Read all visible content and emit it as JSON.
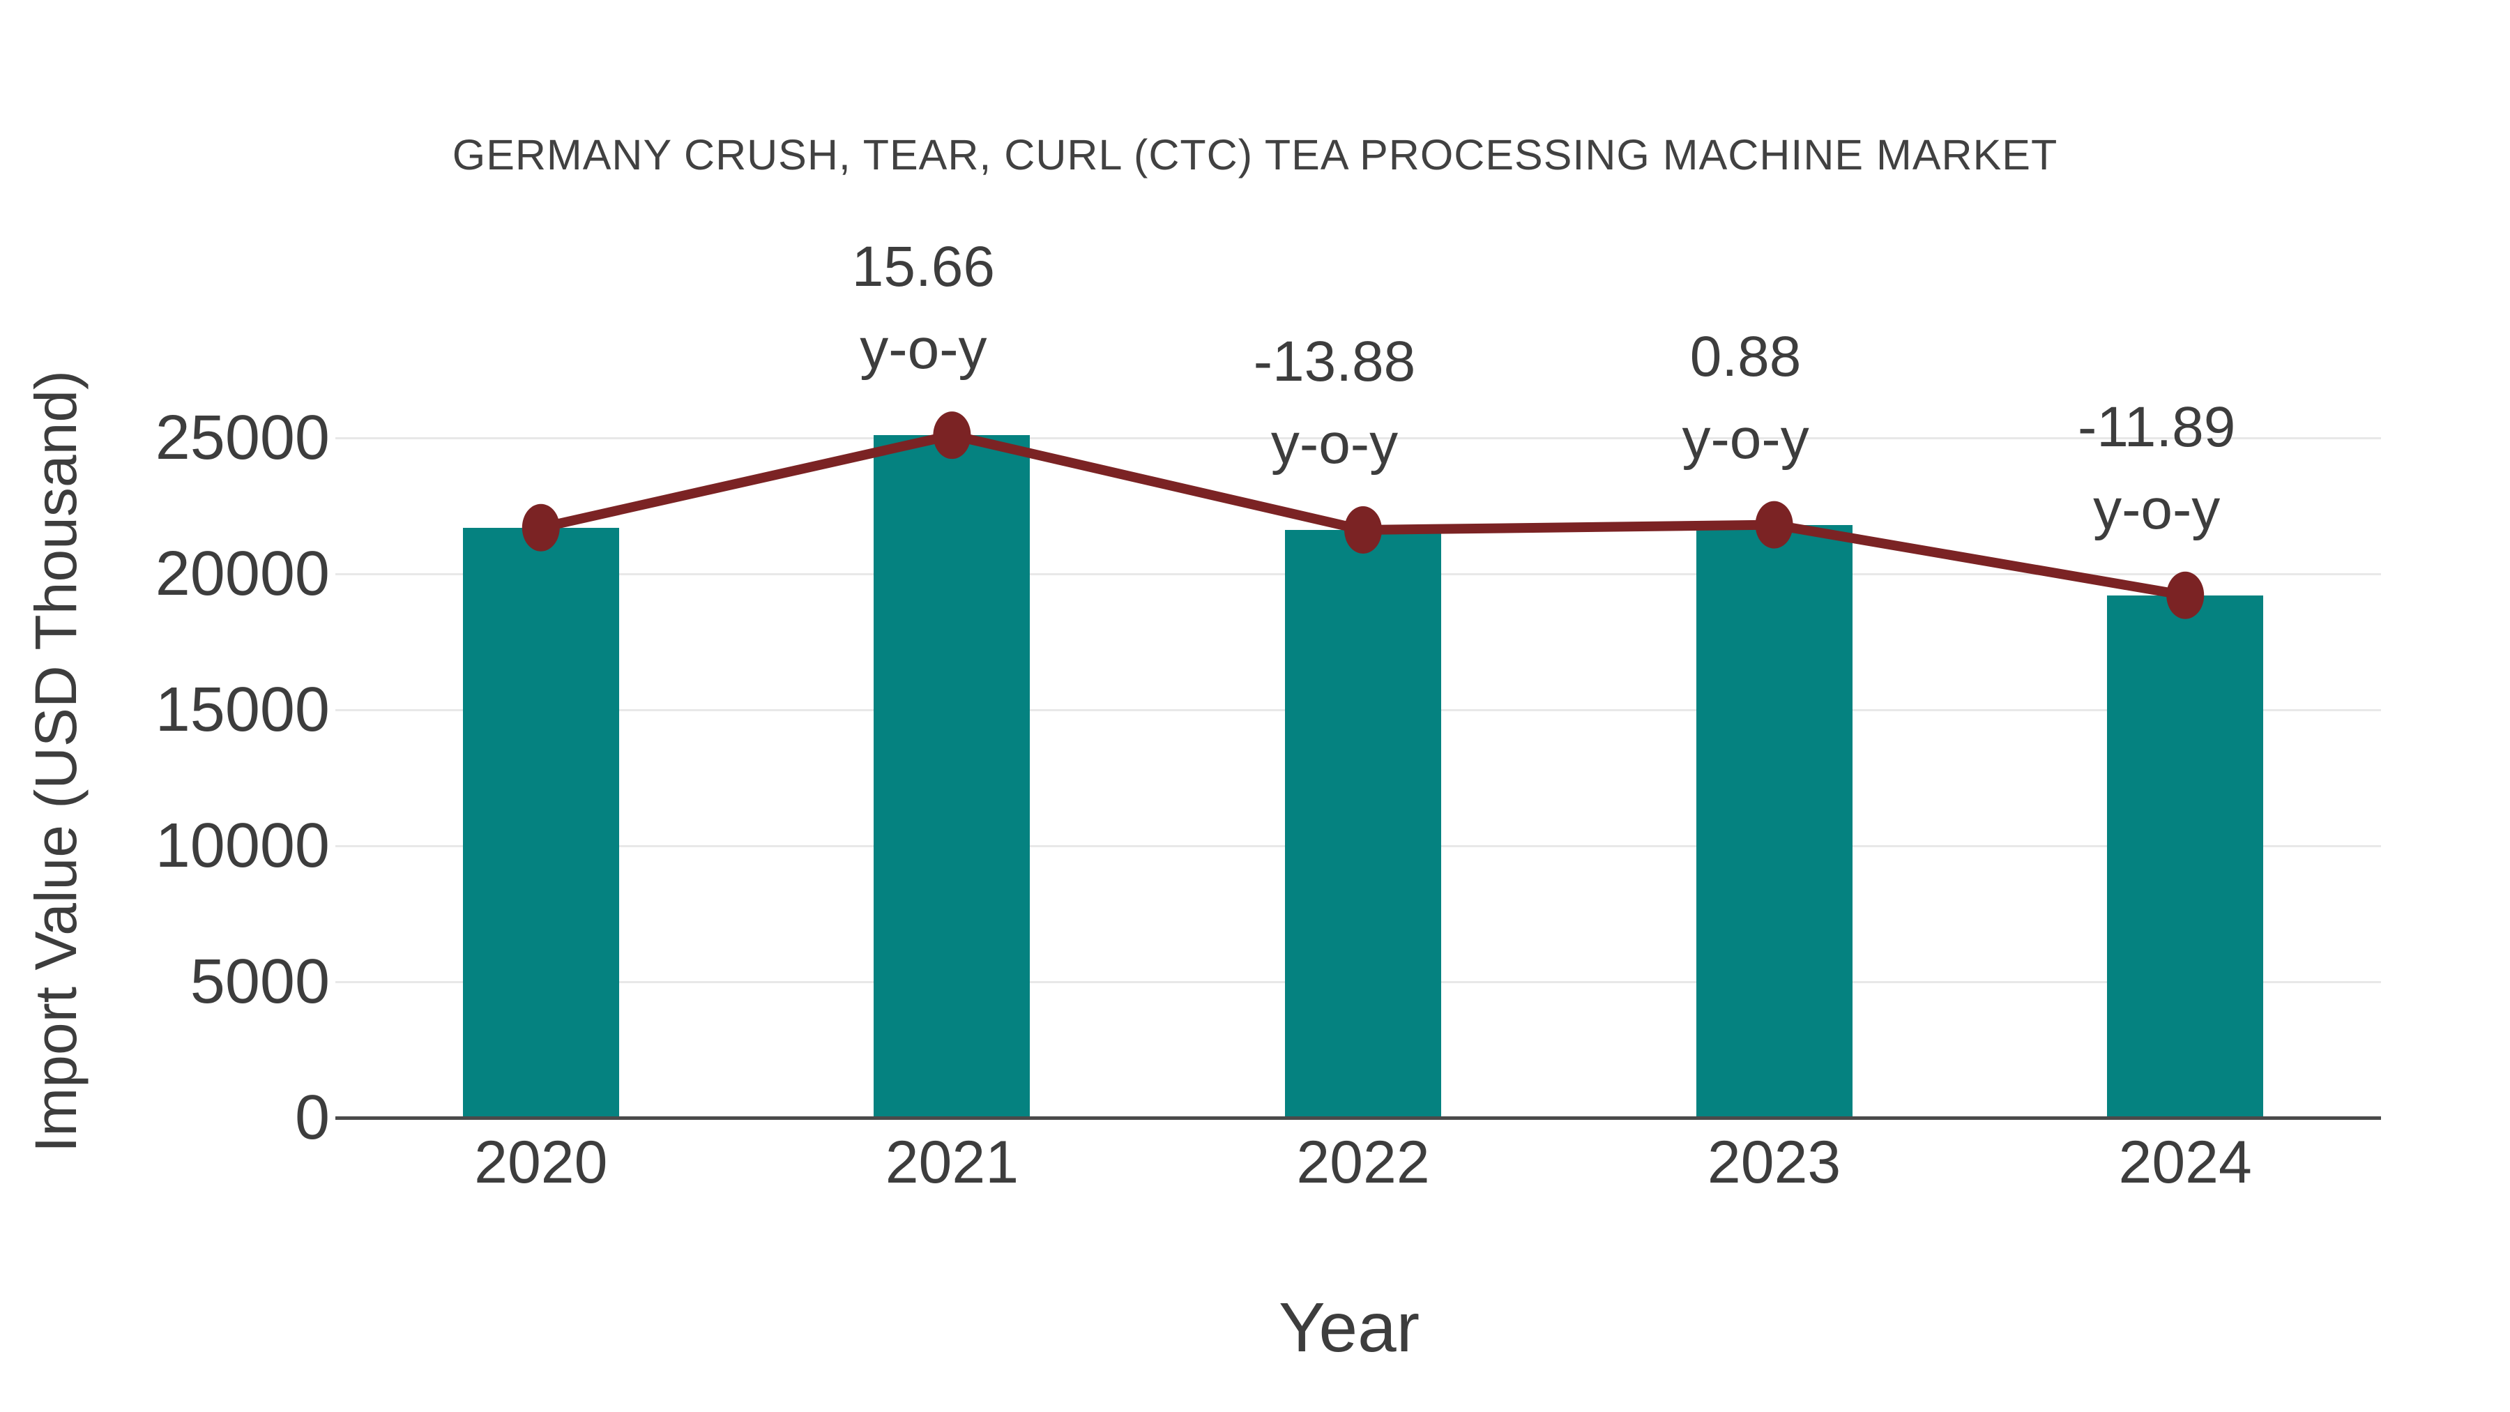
{
  "chart_data": {
    "type": "bar",
    "title": "GERMANY CRUSH, TEAR, CURL (CTC) TEA PROCESSING MACHINE MARKET",
    "categories": [
      "2020",
      "2021",
      "2022",
      "2023",
      "2024"
    ],
    "series": [
      {
        "name": "Import Value",
        "type": "bar",
        "values": [
          21700,
          25098,
          21615,
          21805,
          19212
        ]
      },
      {
        "name": "Import Value trend",
        "type": "line",
        "values": [
          21700,
          25098,
          21615,
          21805,
          19212
        ]
      }
    ],
    "yoy_percent": [
      null,
      15.66,
      -13.88,
      0.88,
      -11.89
    ],
    "annotations": [
      {
        "category": "2021",
        "line1": "15.66",
        "line2": "y-o-y"
      },
      {
        "category": "2022",
        "line1": "-13.88",
        "line2": "y-o-y"
      },
      {
        "category": "2023",
        "line1": "0.88",
        "line2": "y-o-y"
      },
      {
        "category": "2024",
        "line1": "-11.89",
        "line2": "y-o-y"
      }
    ],
    "xlabel": "Year",
    "ylabel": "Import Value (USD Thousand)",
    "ylim": [
      0,
      27500
    ],
    "yticks": [
      0,
      5000,
      10000,
      15000,
      20000,
      25000
    ],
    "grid": true,
    "legend": false
  },
  "colors": {
    "bar": "#058280",
    "line": "#7b2324",
    "marker": "#7b2324",
    "grid": "#e8e8e8",
    "axis": "#4a4a4a",
    "text": "#3d3d3d",
    "background": "#ffffff"
  }
}
